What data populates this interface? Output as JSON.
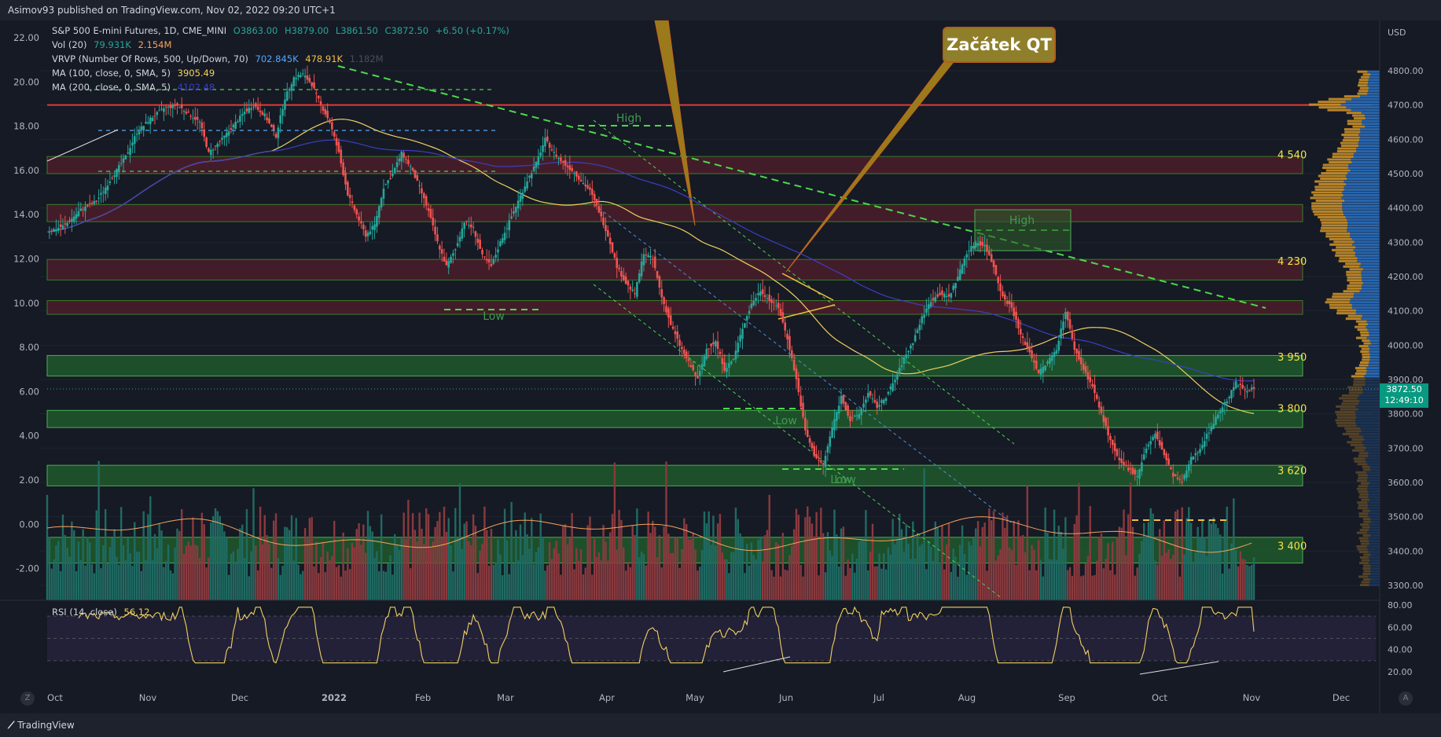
{
  "header": {
    "text": "Asimov93 published on TradingView.com, Nov 02, 2022 09:20 UTC+1"
  },
  "legend": {
    "symbol": "S&P 500 E-mini Futures, 1D, CME_MINI",
    "o": "O3863.00",
    "h": "H3879.00",
    "l": "L3861.50",
    "c": "C3872.50",
    "change": "+6.50 (+0.17%)",
    "vol_label": "Vol (20)",
    "vol_v1": "79.931K",
    "vol_v2": "2.154M",
    "vrvp_label": "VRVP (Number Of Rows, 500, Up/Down, 70)",
    "vrvp_v1": "702.845K",
    "vrvp_v2": "478.91K",
    "vrvp_v3": "1.182M",
    "ma100_label": "MA (100, close, 0, SMA, 5)",
    "ma100_v": "3905.49",
    "ma200_label": "MA (200, close, 0, SMA, 5)",
    "ma200_v": "4102.48",
    "rsi_label": "RSI (14, close)",
    "rsi_v": "56.12"
  },
  "callout": {
    "text": "Začátek QT"
  },
  "price_tag": {
    "price": "3872.50",
    "time": "12:49:10"
  },
  "footer": {
    "logo": "TradingView"
  },
  "buttons": {
    "z": "Z",
    "a": "A"
  },
  "colors": {
    "bg": "#161a25",
    "up": "#26a69a",
    "down": "#ef5350",
    "ma100": "#f0d060",
    "ma200": "#3c3fbf",
    "trend": "#4cd84c",
    "redline": "#e53935",
    "zone_green": "#1e5a2c",
    "zone_red": "#4a1f2a",
    "vp_up": "#2a6ebd",
    "vp_down": "#c9902a"
  },
  "chart_data": {
    "type": "candlestick",
    "title": "S&P 500 E-mini Futures, 1D, CME_MINI",
    "currency_label": "USD",
    "right_axis_ticks": [
      "4800.00",
      "4700.00",
      "4600.00",
      "4500.00",
      "4400.00",
      "4300.00",
      "4200.00",
      "4100.00",
      "4000.00",
      "3900.00",
      "3800.00",
      "3700.00",
      "3600.00",
      "3500.00",
      "3400.00",
      "3300.00"
    ],
    "left_axis_ticks": [
      "22.00",
      "20.00",
      "18.00",
      "16.00",
      "14.00",
      "12.00",
      "10.00",
      "8.00",
      "6.00",
      "4.00",
      "2.00",
      "0.00",
      "-2.00"
    ],
    "rsi_ticks": [
      "80.00",
      "60.00",
      "40.00",
      "20.00"
    ],
    "x_ticks": [
      "Oct",
      "Nov",
      "Dec",
      "2022",
      "Feb",
      "Mar",
      "Apr",
      "May",
      "Jun",
      "Jul",
      "Aug",
      "Sep",
      "Oct",
      "Nov",
      "Dec"
    ],
    "last_price": 3872.5,
    "close_path": [
      [
        0,
        4330
      ],
      [
        8,
        4350
      ],
      [
        15,
        4395
      ],
      [
        22,
        4420
      ],
      [
        28,
        4480
      ],
      [
        35,
        4550
      ],
      [
        40,
        4620
      ],
      [
        46,
        4660
      ],
      [
        52,
        4690
      ],
      [
        58,
        4700
      ],
      [
        62,
        4680
      ],
      [
        68,
        4650
      ],
      [
        72,
        4560
      ],
      [
        78,
        4600
      ],
      [
        83,
        4640
      ],
      [
        88,
        4680
      ],
      [
        92,
        4700
      ],
      [
        97,
        4670
      ],
      [
        102,
        4610
      ],
      [
        106,
        4720
      ],
      [
        110,
        4780
      ],
      [
        114,
        4790
      ],
      [
        118,
        4760
      ],
      [
        122,
        4700
      ],
      [
        126,
        4650
      ],
      [
        130,
        4560
      ],
      [
        134,
        4440
      ],
      [
        138,
        4380
      ],
      [
        142,
        4320
      ],
      [
        146,
        4350
      ],
      [
        150,
        4460
      ],
      [
        154,
        4500
      ],
      [
        158,
        4560
      ],
      [
        162,
        4520
      ],
      [
        166,
        4460
      ],
      [
        170,
        4390
      ],
      [
        174,
        4300
      ],
      [
        178,
        4230
      ],
      [
        182,
        4280
      ],
      [
        186,
        4360
      ],
      [
        190,
        4340
      ],
      [
        194,
        4260
      ],
      [
        198,
        4230
      ],
      [
        202,
        4300
      ],
      [
        206,
        4360
      ],
      [
        210,
        4420
      ],
      [
        214,
        4480
      ],
      [
        218,
        4530
      ],
      [
        222,
        4600
      ],
      [
        226,
        4560
      ],
      [
        230,
        4530
      ],
      [
        234,
        4510
      ],
      [
        238,
        4480
      ],
      [
        242,
        4450
      ],
      [
        246,
        4390
      ],
      [
        250,
        4320
      ],
      [
        254,
        4230
      ],
      [
        258,
        4180
      ],
      [
        262,
        4150
      ],
      [
        266,
        4270
      ],
      [
        270,
        4250
      ],
      [
        274,
        4140
      ],
      [
        278,
        4060
      ],
      [
        282,
        4000
      ],
      [
        286,
        3950
      ],
      [
        290,
        3900
      ],
      [
        294,
        3990
      ],
      [
        298,
        4010
      ],
      [
        302,
        3930
      ],
      [
        306,
        3960
      ],
      [
        310,
        4050
      ],
      [
        314,
        4120
      ],
      [
        318,
        4160
      ],
      [
        322,
        4130
      ],
      [
        326,
        4110
      ],
      [
        330,
        4020
      ],
      [
        334,
        3900
      ],
      [
        338,
        3750
      ],
      [
        342,
        3680
      ],
      [
        346,
        3650
      ],
      [
        350,
        3760
      ],
      [
        354,
        3850
      ],
      [
        358,
        3780
      ],
      [
        362,
        3800
      ],
      [
        366,
        3860
      ],
      [
        370,
        3820
      ],
      [
        374,
        3850
      ],
      [
        378,
        3900
      ],
      [
        382,
        3960
      ],
      [
        386,
        4010
      ],
      [
        390,
        4080
      ],
      [
        394,
        4130
      ],
      [
        398,
        4150
      ],
      [
        402,
        4140
      ],
      [
        406,
        4200
      ],
      [
        410,
        4270
      ],
      [
        414,
        4300
      ],
      [
        418,
        4290
      ],
      [
        422,
        4230
      ],
      [
        426,
        4140
      ],
      [
        430,
        4110
      ],
      [
        434,
        4030
      ],
      [
        438,
        3980
      ],
      [
        442,
        3920
      ],
      [
        446,
        3950
      ],
      [
        450,
        3990
      ],
      [
        454,
        4100
      ],
      [
        458,
        3990
      ],
      [
        462,
        3930
      ],
      [
        466,
        3880
      ],
      [
        470,
        3800
      ],
      [
        474,
        3720
      ],
      [
        478,
        3660
      ],
      [
        482,
        3640
      ],
      [
        486,
        3620
      ],
      [
        490,
        3700
      ],
      [
        494,
        3740
      ],
      [
        498,
        3680
      ],
      [
        502,
        3620
      ],
      [
        506,
        3600
      ],
      [
        510,
        3670
      ],
      [
        514,
        3700
      ],
      [
        518,
        3750
      ],
      [
        522,
        3800
      ],
      [
        526,
        3840
      ],
      [
        530,
        3890
      ],
      [
        534,
        3870
      ],
      [
        538,
        3872.5
      ]
    ],
    "horizontal_levels": [
      {
        "label": "4 540",
        "price": 4540
      },
      {
        "label": "4 230",
        "price": 4230
      },
      {
        "label": "3 950",
        "price": 3950
      },
      {
        "label": "3 800",
        "price": 3800
      },
      {
        "label": "3 620",
        "price": 3620
      },
      {
        "label": "3 400",
        "price": 3400
      }
    ],
    "zones": [
      {
        "kind": "red",
        "from": 4500,
        "to": 4550
      },
      {
        "kind": "red",
        "from": 4360,
        "to": 4410
      },
      {
        "kind": "red",
        "from": 4190,
        "to": 4250
      },
      {
        "kind": "red",
        "from": 4090,
        "to": 4130
      },
      {
        "kind": "green",
        "from": 3910,
        "to": 3970
      },
      {
        "kind": "green",
        "from": 3760,
        "to": 3810
      },
      {
        "kind": "green",
        "from": 3590,
        "to": 3650
      },
      {
        "kind": "green",
        "from": 3365,
        "to": 3440
      }
    ],
    "resistance_line": {
      "price": 4700
    },
    "annotations": [
      "High",
      "Low",
      "High",
      "Low",
      "Low",
      "Low"
    ],
    "rsi_last": 56.12,
    "ma100_last": 3905.49,
    "ma200_last": 4102.48
  }
}
